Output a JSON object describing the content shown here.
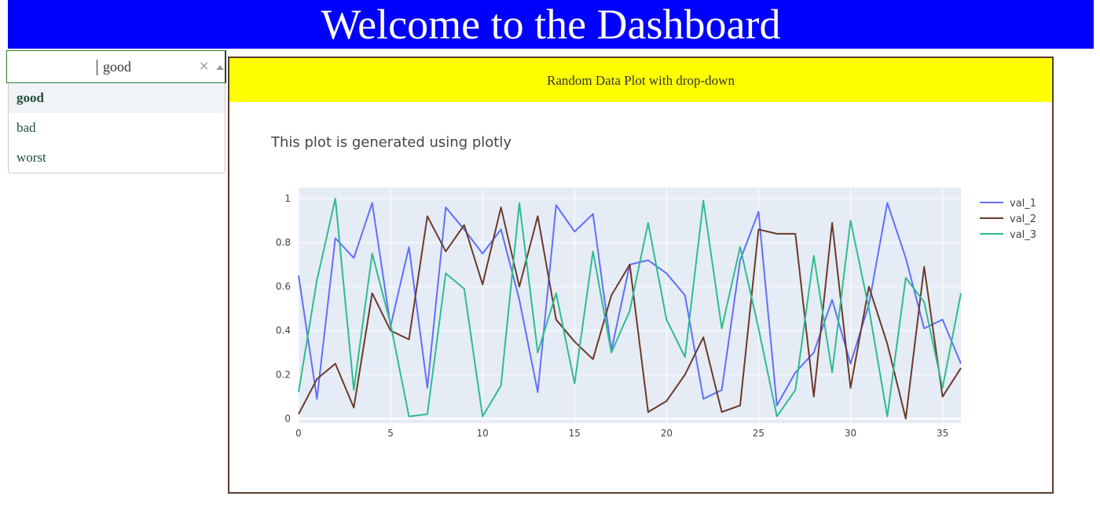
{
  "header": {
    "title": "Welcome to the Dashboard"
  },
  "dropdown": {
    "value": "good",
    "clear_icon": "×",
    "options": [
      "good",
      "bad",
      "worst"
    ]
  },
  "panel": {
    "title": "Random Data Plot with drop-down"
  },
  "chart_data": {
    "type": "line",
    "title": "This plot is generated using plotly",
    "xlabel": "",
    "ylabel": "",
    "xlim": [
      0,
      36
    ],
    "ylim": [
      -0.02,
      1.05
    ],
    "x_ticks": [
      0,
      5,
      10,
      15,
      20,
      25,
      30,
      35
    ],
    "y_ticks": [
      0,
      0.2,
      0.4,
      0.6,
      0.8,
      1
    ],
    "grid": true,
    "legend": "right",
    "series": [
      {
        "name": "val_1",
        "color": "#636efa",
        "values": [
          0.65,
          0.09,
          0.82,
          0.73,
          0.98,
          0.42,
          0.78,
          0.14,
          0.96,
          0.86,
          0.75,
          0.86,
          0.54,
          0.12,
          0.97,
          0.85,
          0.93,
          0.31,
          0.7,
          0.72,
          0.66,
          0.56,
          0.09,
          0.13,
          0.72,
          0.94,
          0.06,
          0.21,
          0.3,
          0.54,
          0.25,
          0.52,
          0.98,
          0.73,
          0.41,
          0.45,
          0.25
        ]
      },
      {
        "name": "val_2",
        "color": "#6b3a2a",
        "values": [
          0.02,
          0.18,
          0.25,
          0.05,
          0.57,
          0.4,
          0.36,
          0.92,
          0.76,
          0.88,
          0.61,
          0.96,
          0.6,
          0.92,
          0.45,
          0.35,
          0.27,
          0.56,
          0.7,
          0.03,
          0.08,
          0.2,
          0.37,
          0.03,
          0.06,
          0.86,
          0.84,
          0.84,
          0.1,
          0.89,
          0.14,
          0.6,
          0.34,
          0.0,
          0.69,
          0.1,
          0.23
        ]
      },
      {
        "name": "val_3",
        "color": "#2ebc8e",
        "values": [
          0.12,
          0.63,
          1.0,
          0.13,
          0.75,
          0.43,
          0.01,
          0.02,
          0.66,
          0.59,
          0.01,
          0.15,
          0.98,
          0.3,
          0.57,
          0.16,
          0.76,
          0.3,
          0.49,
          0.89,
          0.45,
          0.28,
          0.99,
          0.41,
          0.78,
          0.41,
          0.01,
          0.13,
          0.74,
          0.21,
          0.9,
          0.5,
          0.01,
          0.64,
          0.53,
          0.14,
          0.57
        ]
      }
    ]
  }
}
